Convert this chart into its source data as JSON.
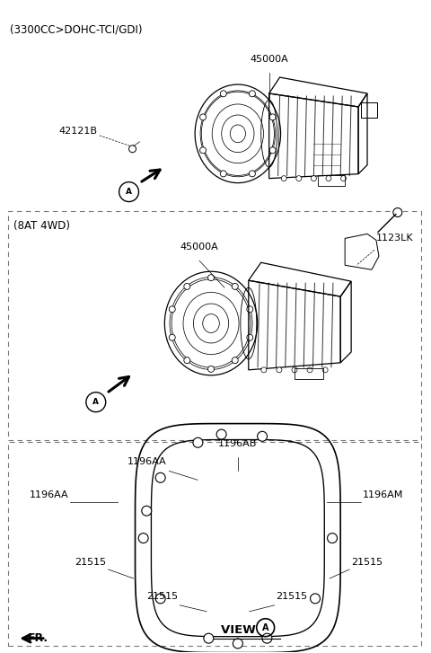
{
  "title_top": "(3300CC>DOHC-TCI/GDI)",
  "section2_label": "(8AT 4WD)",
  "view_label": "VIEW ",
  "fr_label": "FR.",
  "bg_color": "#ffffff",
  "text_color": "#000000",
  "line_color": "#000000",
  "figsize": [
    4.8,
    7.27
  ],
  "dpi": 100
}
